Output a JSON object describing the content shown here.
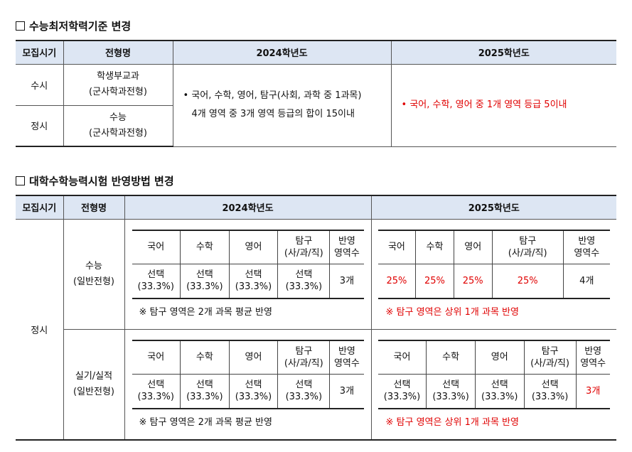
{
  "section1": {
    "title": "수능최저학력기준 변경",
    "headers": [
      "모집시기",
      "전형명",
      "2024학년도",
      "2025학년도"
    ],
    "rows": [
      {
        "period": "수시",
        "type_line1": "학생부교과",
        "type_line2": "(군사학과전형)"
      },
      {
        "period": "정시",
        "type_line1": "수능",
        "type_line2": "(군사학과전형)"
      }
    ],
    "y2024_line1": "국어, 수학, 영어, 탐구(사회, 과학 중 1과목)",
    "y2024_line2": "4개 영역 중 3개 영역 등급의 합이 15이내",
    "y2025": "국어, 수학, 영어 중 1개 영역 등급 5이내",
    "bullet": "•"
  },
  "section2": {
    "title": "대학수학능력시험 반영방법 변경",
    "headers": [
      "모집시기",
      "전형명",
      "2024학년도",
      "2025학년도"
    ],
    "period": "정시",
    "subject_headers": [
      "국어",
      "수학",
      "영어",
      "탐구",
      "(사/과/직)",
      "반영",
      "영역수"
    ],
    "select_label": "선택",
    "select_pct": "(33.3%)",
    "pct25": "25%",
    "count3": "3개",
    "count4": "4개",
    "note_2024": "※ 탐구 영역은 2개 과목 평균 반영",
    "note_2025": "※ 탐구 영역은 상위 1개 과목 반영",
    "groups": [
      {
        "type_line1": "수능",
        "type_line2": "(일반전형)"
      },
      {
        "type_line1": "실기/실적",
        "type_line2": "(일반전형)"
      }
    ]
  },
  "colors": {
    "header_bg": "#dde6f3",
    "accent_red": "#e00000"
  },
  "icons": {
    "checkbox": "square-icon"
  }
}
